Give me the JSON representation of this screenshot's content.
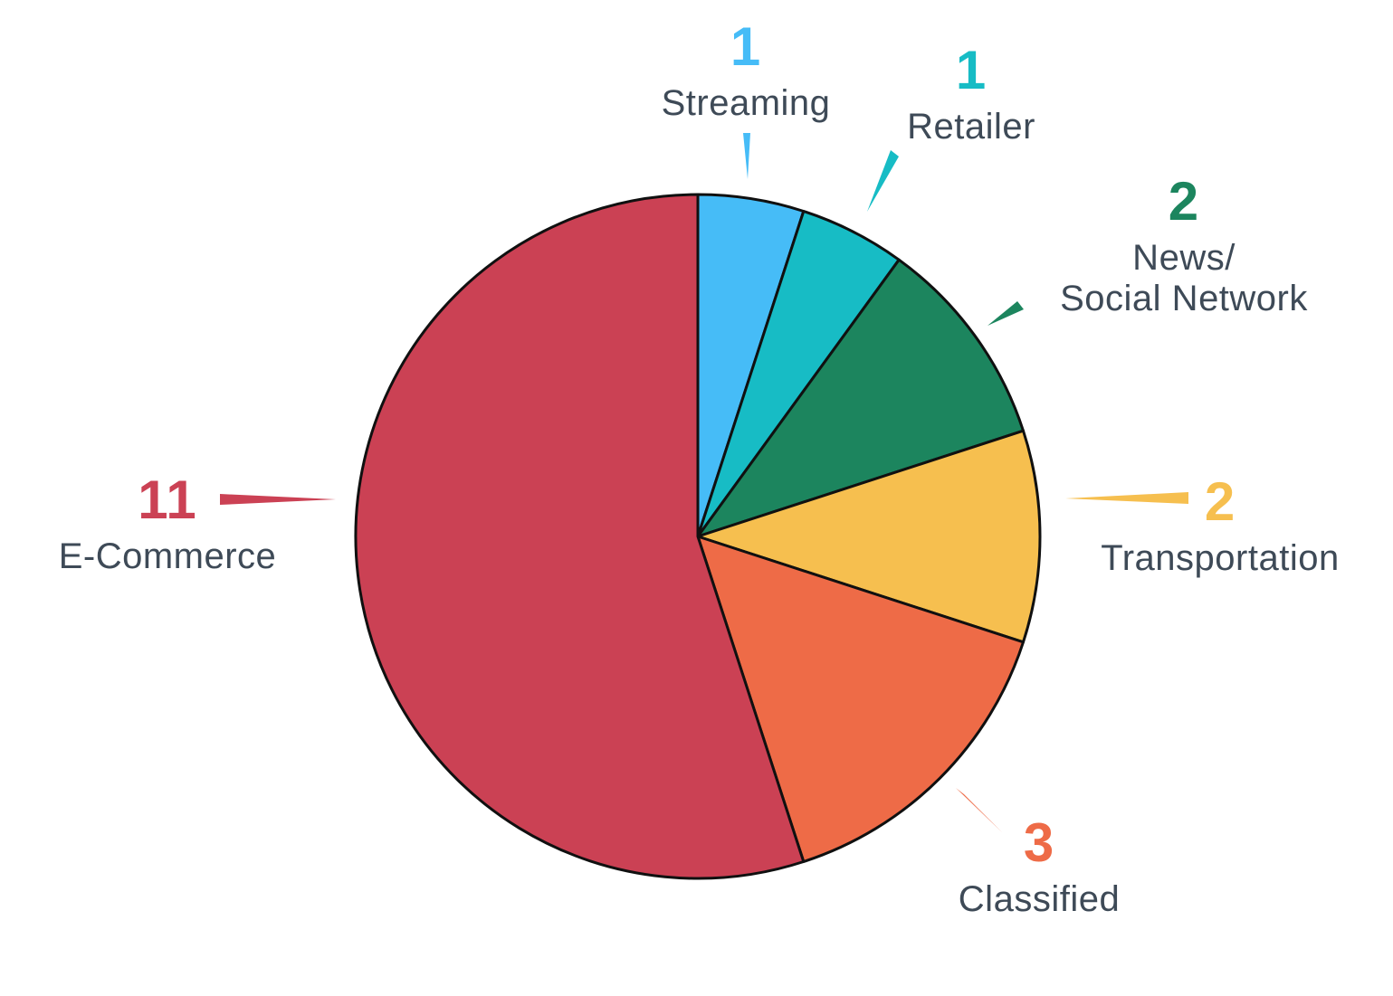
{
  "chart_data": {
    "type": "pie",
    "total": 20,
    "start_angle_deg": 0,
    "direction": "clockwise",
    "outline_color": "#101010",
    "label_text_color": "#3E4A57",
    "background": "#FFFFFF",
    "legend_position": "callout-labels-around-pie",
    "slices": [
      {
        "label": "Streaming",
        "value": 1,
        "color": "#46BCF7"
      },
      {
        "label": "Retailer",
        "value": 1,
        "color": "#17BCC5"
      },
      {
        "label": "News/Social Network",
        "value": 2,
        "color": "#1C855E",
        "label_lines": [
          "News/",
          "Social Network"
        ]
      },
      {
        "label": "Transportation",
        "value": 2,
        "color": "#F6BF4F"
      },
      {
        "label": "Classified",
        "value": 3,
        "color": "#EE6B47"
      },
      {
        "label": "E-Commerce",
        "value": 11,
        "color": "#CB4154"
      }
    ]
  }
}
